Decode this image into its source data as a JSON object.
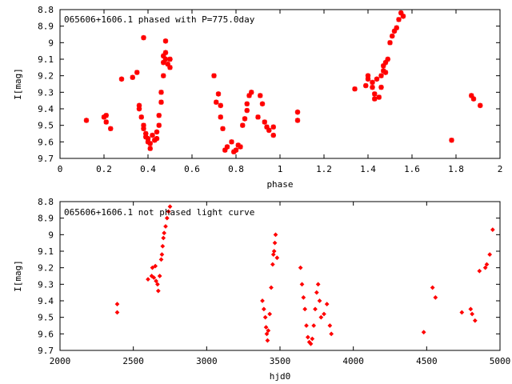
{
  "chart_data": [
    {
      "type": "scatter",
      "title": "065606+1606.1 phased with P=775.0day",
      "xlabel": "phase",
      "ylabel": "I[mag]",
      "xlim": [
        0,
        2
      ],
      "ylim": [
        9.7,
        8.8
      ],
      "y_inverted": true,
      "x_ticks": [
        "0",
        "0.2",
        "0.4",
        "0.6",
        "0.8",
        "1",
        "1.2",
        "1.4",
        "1.6",
        "1.8",
        "2"
      ],
      "x_tick_values": [
        0,
        0.2,
        0.4,
        0.6,
        0.8,
        1.0,
        1.2,
        1.4,
        1.6,
        1.8,
        2.0
      ],
      "y_ticks": [
        "8.8",
        "8.9",
        "9",
        "9.1",
        "9.2",
        "9.3",
        "9.4",
        "9.5",
        "9.6",
        "9.7"
      ],
      "y_tick_values": [
        8.8,
        8.9,
        9.0,
        9.1,
        9.2,
        9.3,
        9.4,
        9.5,
        9.6,
        9.7
      ],
      "marker_color": "#ff0000",
      "marker": "star",
      "points": [
        [
          0.12,
          9.47
        ],
        [
          0.2,
          9.45
        ],
        [
          0.21,
          9.48
        ],
        [
          0.21,
          9.44
        ],
        [
          0.23,
          9.52
        ],
        [
          0.28,
          9.22
        ],
        [
          0.33,
          9.21
        ],
        [
          0.35,
          9.18
        ],
        [
          0.36,
          9.4
        ],
        [
          0.36,
          9.38
        ],
        [
          0.37,
          9.45
        ],
        [
          0.38,
          8.97
        ],
        [
          0.38,
          9.5
        ],
        [
          0.38,
          9.52
        ],
        [
          0.39,
          9.55
        ],
        [
          0.39,
          9.57
        ],
        [
          0.4,
          9.58
        ],
        [
          0.4,
          9.6
        ],
        [
          0.41,
          9.64
        ],
        [
          0.41,
          9.61
        ],
        [
          0.42,
          9.56
        ],
        [
          0.43,
          9.59
        ],
        [
          0.44,
          9.54
        ],
        [
          0.44,
          9.58
        ],
        [
          0.45,
          9.5
        ],
        [
          0.45,
          9.44
        ],
        [
          0.46,
          9.36
        ],
        [
          0.46,
          9.3
        ],
        [
          0.47,
          9.2
        ],
        [
          0.47,
          9.12
        ],
        [
          0.47,
          9.08
        ],
        [
          0.48,
          9.06
        ],
        [
          0.48,
          9.1
        ],
        [
          0.48,
          8.99
        ],
        [
          0.49,
          9.13
        ],
        [
          0.5,
          9.1
        ],
        [
          0.5,
          9.15
        ],
        [
          0.7,
          9.2
        ],
        [
          0.71,
          9.36
        ],
        [
          0.72,
          9.31
        ],
        [
          0.73,
          9.38
        ],
        [
          0.73,
          9.45
        ],
        [
          0.74,
          9.52
        ],
        [
          0.75,
          9.65
        ],
        [
          0.76,
          9.63
        ],
        [
          0.78,
          9.6
        ],
        [
          0.79,
          9.66
        ],
        [
          0.8,
          9.65
        ],
        [
          0.81,
          9.62
        ],
        [
          0.82,
          9.63
        ],
        [
          0.83,
          9.5
        ],
        [
          0.84,
          9.46
        ],
        [
          0.85,
          9.37
        ],
        [
          0.85,
          9.41
        ],
        [
          0.86,
          9.32
        ],
        [
          0.87,
          9.3
        ],
        [
          0.9,
          9.45
        ],
        [
          0.91,
          9.32
        ],
        [
          0.92,
          9.37
        ],
        [
          0.93,
          9.48
        ],
        [
          0.94,
          9.51
        ],
        [
          0.95,
          9.53
        ],
        [
          0.97,
          9.56
        ],
        [
          0.97,
          9.51
        ],
        [
          1.08,
          9.42
        ],
        [
          1.08,
          9.47
        ],
        [
          1.34,
          9.28
        ],
        [
          1.39,
          9.26
        ],
        [
          1.4,
          9.22
        ],
        [
          1.4,
          9.2
        ],
        [
          1.42,
          9.27
        ],
        [
          1.42,
          9.24
        ],
        [
          1.43,
          9.31
        ],
        [
          1.43,
          9.34
        ],
        [
          1.44,
          9.22
        ],
        [
          1.45,
          9.33
        ],
        [
          1.46,
          9.27
        ],
        [
          1.46,
          9.2
        ],
        [
          1.47,
          9.14
        ],
        [
          1.47,
          9.17
        ],
        [
          1.48,
          9.12
        ],
        [
          1.48,
          9.18
        ],
        [
          1.49,
          9.1
        ],
        [
          1.5,
          9.0
        ],
        [
          1.51,
          8.96
        ],
        [
          1.52,
          8.93
        ],
        [
          1.53,
          8.91
        ],
        [
          1.54,
          8.86
        ],
        [
          1.55,
          8.82
        ],
        [
          1.56,
          8.84
        ],
        [
          1.78,
          9.59
        ],
        [
          1.87,
          9.32
        ],
        [
          1.88,
          9.34
        ],
        [
          1.91,
          9.38
        ]
      ]
    },
    {
      "type": "scatter",
      "title": "065606+1606.1 not phased light curve",
      "xlabel": "hjd0",
      "ylabel": "I[mag]",
      "xlim": [
        2000,
        5000
      ],
      "ylim": [
        9.7,
        8.8
      ],
      "y_inverted": true,
      "x_ticks": [
        "2000",
        "2500",
        "3000",
        "3500",
        "4000",
        "4500",
        "5000"
      ],
      "x_tick_values": [
        2000,
        2500,
        3000,
        3500,
        4000,
        4500,
        5000
      ],
      "y_ticks": [
        "8.8",
        "8.9",
        "9",
        "9.1",
        "9.2",
        "9.3",
        "9.4",
        "9.5",
        "9.6",
        "9.7"
      ],
      "y_tick_values": [
        8.8,
        8.9,
        9.0,
        9.1,
        9.2,
        9.3,
        9.4,
        9.5,
        9.6,
        9.7
      ],
      "marker_color": "#ff0000",
      "marker": "diamond",
      "points": [
        [
          2390,
          9.42
        ],
        [
          2390,
          9.47
        ],
        [
          2600,
          9.27
        ],
        [
          2625,
          9.25
        ],
        [
          2630,
          9.2
        ],
        [
          2640,
          9.26
        ],
        [
          2650,
          9.19
        ],
        [
          2655,
          9.28
        ],
        [
          2665,
          9.3
        ],
        [
          2670,
          9.34
        ],
        [
          2680,
          9.25
        ],
        [
          2690,
          9.15
        ],
        [
          2695,
          9.12
        ],
        [
          2700,
          9.07
        ],
        [
          2705,
          9.02
        ],
        [
          2710,
          8.99
        ],
        [
          2720,
          8.95
        ],
        [
          2730,
          8.9
        ],
        [
          2740,
          8.86
        ],
        [
          2750,
          8.83
        ],
        [
          3380,
          9.4
        ],
        [
          3390,
          9.45
        ],
        [
          3400,
          9.5
        ],
        [
          3405,
          9.56
        ],
        [
          3410,
          9.6
        ],
        [
          3415,
          9.64
        ],
        [
          3420,
          9.58
        ],
        [
          3430,
          9.48
        ],
        [
          3440,
          9.32
        ],
        [
          3450,
          9.18
        ],
        [
          3455,
          9.12
        ],
        [
          3460,
          9.1
        ],
        [
          3465,
          9.05
        ],
        [
          3470,
          9.0
        ],
        [
          3480,
          9.14
        ],
        [
          3640,
          9.2
        ],
        [
          3650,
          9.3
        ],
        [
          3660,
          9.38
        ],
        [
          3670,
          9.45
        ],
        [
          3680,
          9.55
        ],
        [
          3690,
          9.62
        ],
        [
          3700,
          9.65
        ],
        [
          3710,
          9.66
        ],
        [
          3720,
          9.63
        ],
        [
          3730,
          9.55
        ],
        [
          3740,
          9.45
        ],
        [
          3750,
          9.35
        ],
        [
          3760,
          9.3
        ],
        [
          3770,
          9.4
        ],
        [
          3780,
          9.5
        ],
        [
          3800,
          9.48
        ],
        [
          3820,
          9.42
        ],
        [
          3840,
          9.55
        ],
        [
          3850,
          9.6
        ],
        [
          4480,
          9.59
        ],
        [
          4540,
          9.32
        ],
        [
          4560,
          9.38
        ],
        [
          4740,
          9.47
        ],
        [
          4800,
          9.45
        ],
        [
          4810,
          9.48
        ],
        [
          4830,
          9.52
        ],
        [
          4860,
          9.22
        ],
        [
          4900,
          9.2
        ],
        [
          4910,
          9.18
        ],
        [
          4930,
          9.12
        ],
        [
          4950,
          8.97
        ]
      ]
    }
  ]
}
